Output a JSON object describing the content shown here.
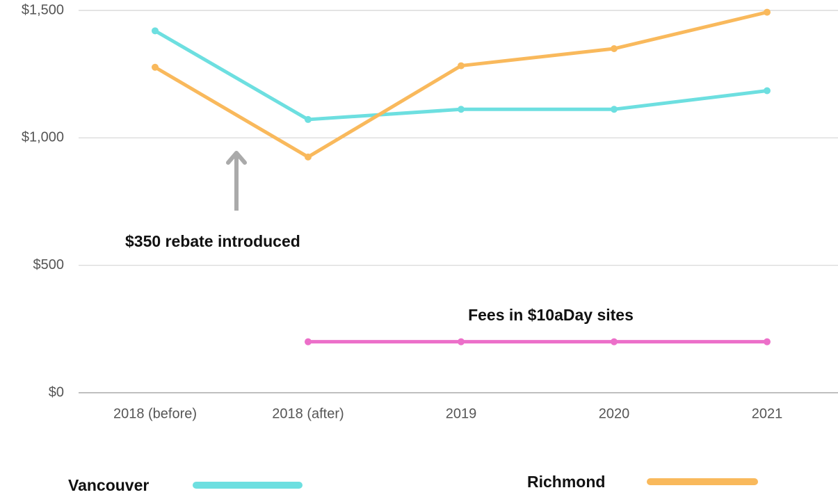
{
  "chart_data": {
    "type": "line",
    "categories": [
      "2018 (before)",
      "2018 (after)",
      "2019",
      "2020",
      "2021"
    ],
    "series": [
      {
        "name": "Vancouver",
        "color": "#6ddfe0",
        "values": [
          1420,
          1072,
          1112,
          1112,
          1185
        ]
      },
      {
        "name": "Richmond",
        "color": "#f9b95c",
        "values": [
          1277,
          925,
          1283,
          1350,
          1493
        ]
      },
      {
        "name": "Fees in $10aDay sites",
        "color": "#ec6fc9",
        "values": [
          null,
          200,
          200,
          200,
          200
        ]
      }
    ],
    "ylim": [
      0,
      1500
    ],
    "yticks": [
      {
        "value": 0,
        "label": "$0"
      },
      {
        "value": 500,
        "label": "$500"
      },
      {
        "value": 1000,
        "label": "$1,000"
      },
      {
        "value": 1500,
        "label": "$1,500"
      }
    ],
    "grid": true,
    "annotations": [
      {
        "text": "$350 rebate introduced"
      }
    ]
  }
}
